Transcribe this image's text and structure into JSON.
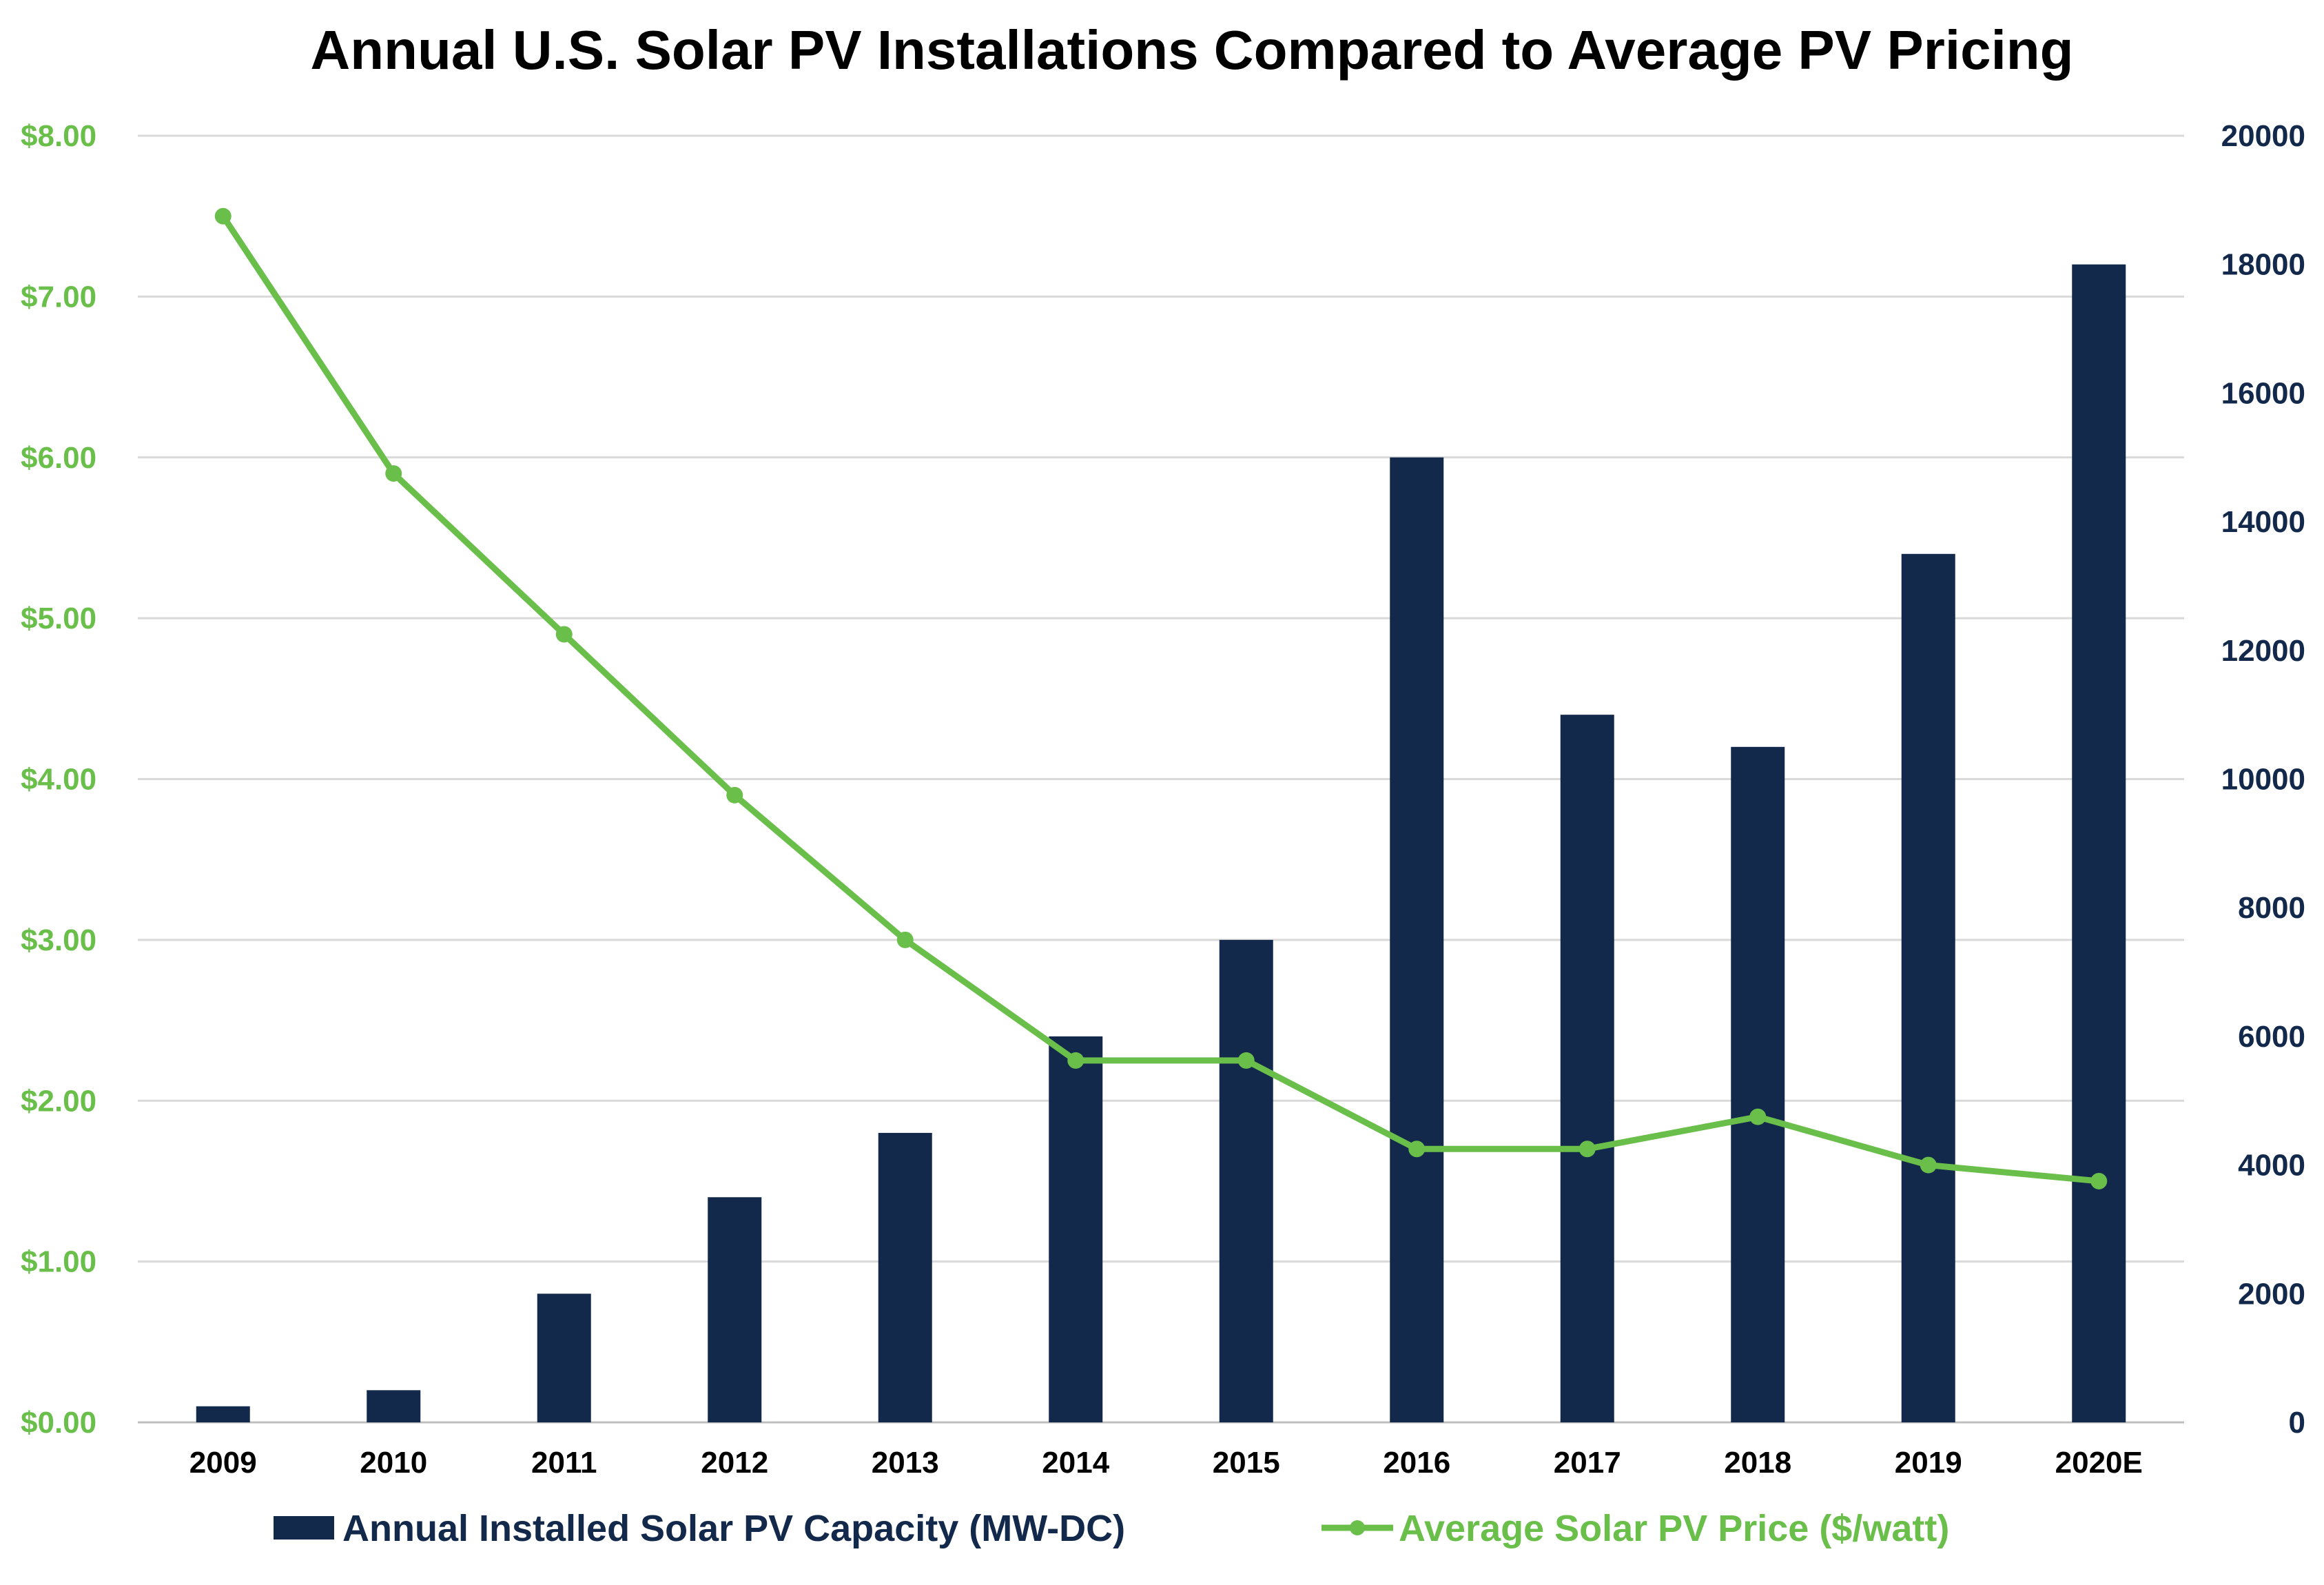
{
  "chart_data": {
    "type": "bar+line",
    "title": "Annual U.S. Solar PV Installations Compared to Average PV Pricing",
    "categories": [
      "2009",
      "2010",
      "2011",
      "2012",
      "2013",
      "2014",
      "2015",
      "2016",
      "2017",
      "2018",
      "2019",
      "2020E"
    ],
    "series": [
      {
        "name": "Annual Installed Solar PV Capacity (MW-DC)",
        "type": "bar",
        "axis": "right",
        "color": "#13294b",
        "values": [
          250,
          500,
          2000,
          3500,
          4500,
          6000,
          7500,
          15000,
          11000,
          10500,
          13500,
          18000
        ]
      },
      {
        "name": "Average Solar PV Price ($/watt)",
        "type": "line",
        "axis": "left",
        "color": "#6abf4b",
        "values": [
          7.5,
          5.9,
          4.9,
          3.9,
          3.0,
          2.25,
          2.25,
          1.7,
          1.7,
          1.9,
          1.6,
          1.5
        ]
      }
    ],
    "y_left": {
      "range": [
        0,
        8
      ],
      "ticks": [
        "$0.00",
        "$1.00",
        "$2.00",
        "$3.00",
        "$4.00",
        "$5.00",
        "$6.00",
        "$7.00",
        "$8.00"
      ],
      "color": "#6abf4b"
    },
    "y_right": {
      "range": [
        0,
        20000
      ],
      "ticks": [
        "0",
        "2000",
        "4000",
        "6000",
        "8000",
        "10000",
        "12000",
        "14000",
        "16000",
        "18000",
        "20000"
      ],
      "color": "#13294b"
    },
    "grid": true,
    "legend_position": "bottom"
  },
  "colors": {
    "grid": "#d9d9d9",
    "axis": "#bfbfbf"
  }
}
